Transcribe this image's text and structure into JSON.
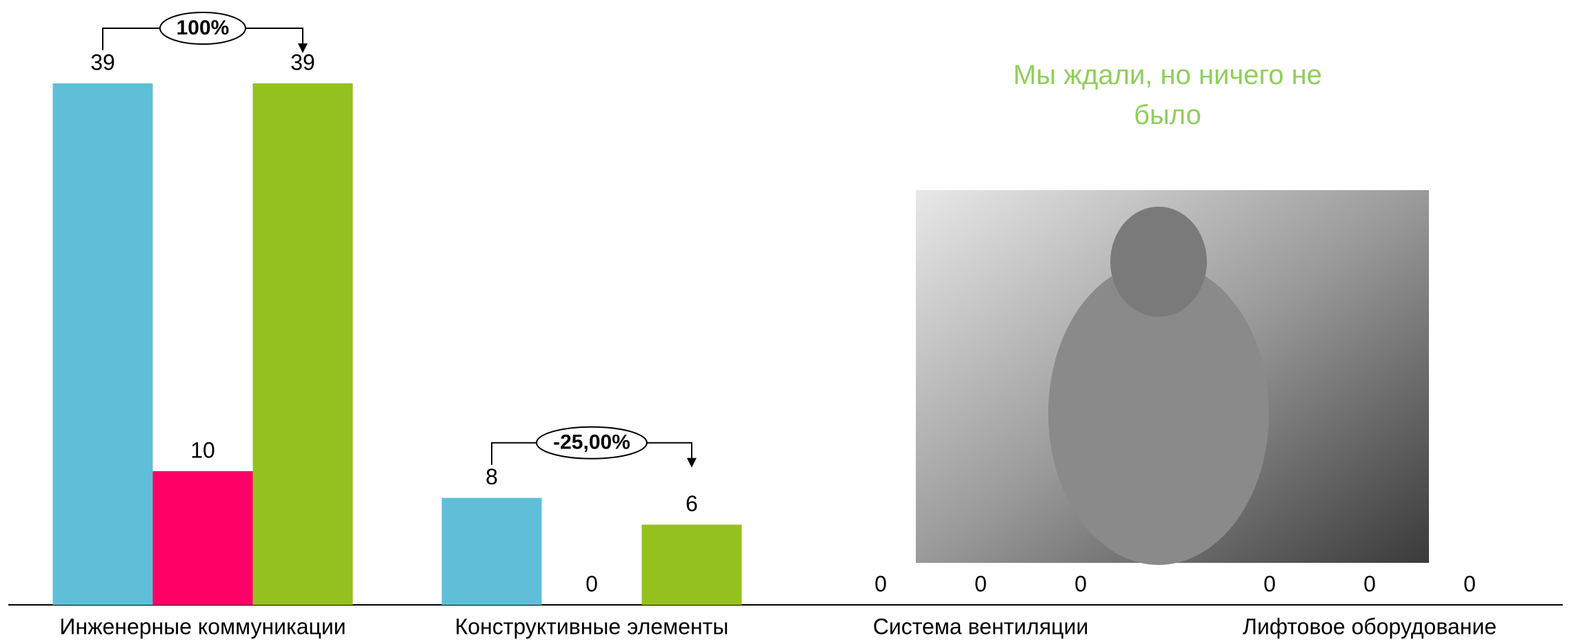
{
  "chart_data": {
    "type": "bar",
    "categories": [
      "Инженерные коммуникации",
      "Конструктивные элементы",
      "Система вентиляции",
      "Лифтовое оборудование"
    ],
    "series": [
      {
        "color": "#5fbfd8",
        "values": [
          39,
          8,
          0,
          0
        ]
      },
      {
        "color": "#ff0066",
        "values": [
          10,
          0,
          0,
          0
        ]
      },
      {
        "color": "#95c11f",
        "values": [
          39,
          6,
          0,
          0
        ]
      }
    ],
    "annotations": [
      "100%",
      "-25,00%"
    ],
    "note": "Мы ждали, но ничего не было",
    "note_color": "#8fcf5a"
  }
}
